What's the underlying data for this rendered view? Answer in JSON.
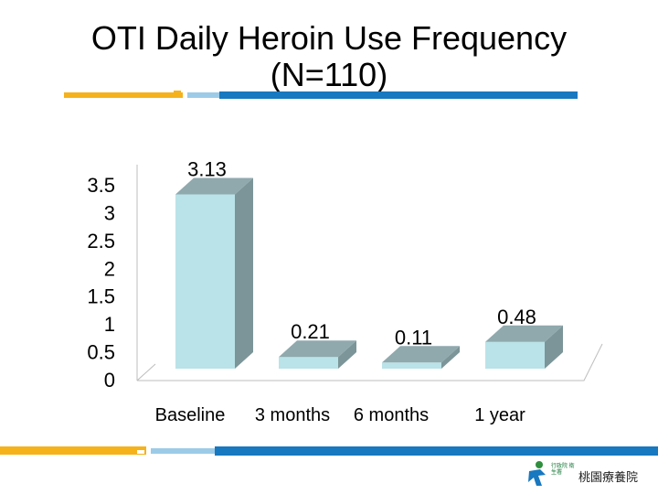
{
  "title_line1": "OTI Daily Heroin Use Frequency",
  "title_line2": "(N=110)",
  "logo": {
    "org_text": "行政院 衛生署",
    "hospital_text": "桃園療養院"
  },
  "colors": {
    "bar_front": "#b9e3e8",
    "bar_top": "#8fa9ad",
    "bar_side": "#7c9598",
    "accent_orange": "#f5b21b",
    "accent_blue": "#1878c0"
  },
  "chart_data": {
    "type": "bar",
    "title": "OTI Daily Heroin Use Frequency (N=110)",
    "categories": [
      "Baseline",
      "3 months",
      "6 months",
      "1 year"
    ],
    "values": [
      3.13,
      0.21,
      0.11,
      0.48
    ],
    "data_labels": [
      "3.13",
      "0.21",
      "0.11",
      "0.48"
    ],
    "ylim": [
      0,
      3.5
    ],
    "yticks": [
      0,
      0.5,
      1,
      1.5,
      2,
      2.5,
      3,
      3.5
    ],
    "ytick_labels": [
      "0",
      "0.5",
      "1",
      "1.5",
      "2",
      "2.5",
      "3",
      "3.5"
    ],
    "xlabel": "",
    "ylabel": "",
    "legend": "none",
    "style": "3d-bar"
  }
}
